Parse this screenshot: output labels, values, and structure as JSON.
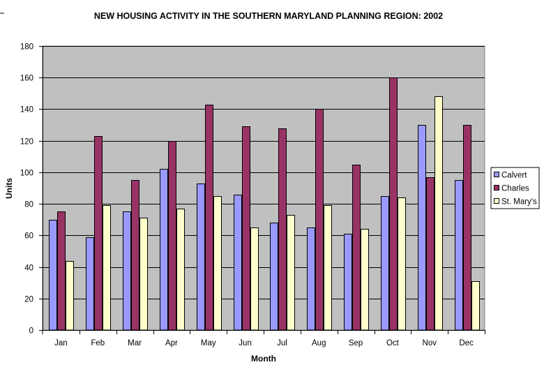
{
  "chart_data": {
    "type": "bar",
    "title": "NEW HOUSING ACTIVITY IN THE SOUTHERN MARYLAND PLANNING REGION:  2002",
    "xlabel": "Month",
    "ylabel": "Units",
    "ylim": [
      0,
      180
    ],
    "yticks": [
      0,
      20,
      40,
      60,
      80,
      100,
      120,
      140,
      160,
      180
    ],
    "grid": true,
    "legend_position": "right",
    "categories": [
      "Jan",
      "Feb",
      "Mar",
      "Apr",
      "May",
      "Jun",
      "Jul",
      "Aug",
      "Sep",
      "Oct",
      "Nov",
      "Dec"
    ],
    "series": [
      {
        "name": "Calvert",
        "color": "#9999ff",
        "values": [
          70,
          59,
          75,
          102,
          93,
          86,
          68,
          65,
          61,
          85,
          130,
          95
        ]
      },
      {
        "name": "Charles",
        "color": "#993366",
        "values": [
          75,
          123,
          95,
          120,
          143,
          129,
          128,
          140,
          105,
          160,
          97,
          130
        ]
      },
      {
        "name": "St. Mary's",
        "color": "#ffffcc",
        "values": [
          44,
          79,
          71,
          77,
          85,
          65,
          73,
          79,
          64,
          84,
          148,
          31
        ]
      }
    ],
    "plot_background": "#c0c0c0"
  }
}
